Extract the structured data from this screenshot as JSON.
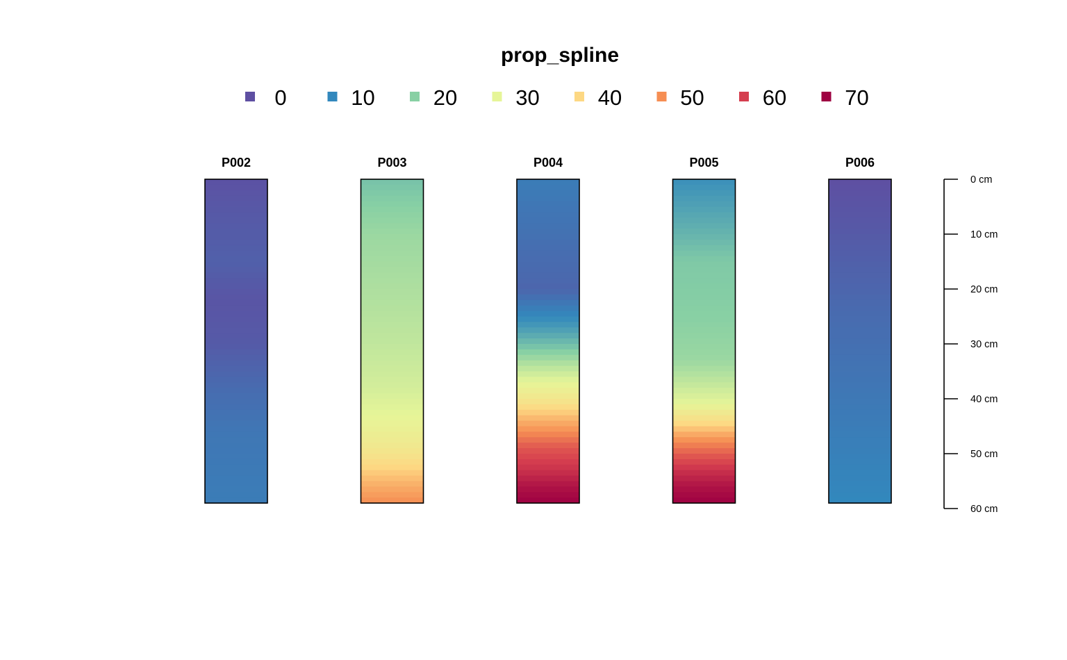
{
  "chart_data": {
    "type": "heatmap",
    "title": "prop_spline",
    "legend": {
      "position": "top",
      "entries": [
        {
          "label": "0",
          "value": 0,
          "color": "#5E4FA2"
        },
        {
          "label": "10",
          "value": 10,
          "color": "#3288BD"
        },
        {
          "label": "20",
          "value": 20,
          "color": "#88D0A4"
        },
        {
          "label": "30",
          "value": 30,
          "color": "#E6F598"
        },
        {
          "label": "40",
          "value": 40,
          "color": "#FDD883"
        },
        {
          "label": "50",
          "value": 50,
          "color": "#F68E53"
        },
        {
          "label": "60",
          "value": 60,
          "color": "#D53E4F"
        },
        {
          "label": "70",
          "value": 70,
          "color": "#9E0142"
        }
      ]
    },
    "depth_axis": {
      "unit": "cm",
      "range": [
        0,
        60
      ],
      "ticks": [
        0,
        10,
        20,
        30,
        40,
        50,
        60
      ],
      "tick_labels": [
        "0 cm",
        "10 cm",
        "20 cm",
        "30 cm",
        "40 cm",
        "50 cm",
        "60 cm"
      ]
    },
    "profiles": [
      {
        "id": "P002",
        "top": 0,
        "bottom": 59,
        "profile_points": [
          [
            0,
            0.5
          ],
          [
            8,
            2
          ],
          [
            15,
            3
          ],
          [
            22,
            1
          ],
          [
            30,
            2
          ],
          [
            38,
            5
          ],
          [
            46,
            7
          ],
          [
            59,
            8
          ]
        ]
      },
      {
        "id": "P003",
        "top": 0,
        "bottom": 59,
        "profile_points": [
          [
            0,
            18
          ],
          [
            5,
            20
          ],
          [
            10,
            22
          ],
          [
            20,
            24
          ],
          [
            30,
            26
          ],
          [
            38,
            28
          ],
          [
            43,
            30
          ],
          [
            47,
            33
          ],
          [
            50,
            36
          ],
          [
            53,
            41
          ],
          [
            56,
            46
          ],
          [
            59,
            50
          ]
        ]
      },
      {
        "id": "P004",
        "top": 0,
        "bottom": 59,
        "profile_points": [
          [
            0,
            8
          ],
          [
            10,
            6
          ],
          [
            20,
            4
          ],
          [
            25,
            10
          ],
          [
            28,
            14
          ],
          [
            31,
            19
          ],
          [
            34,
            25
          ],
          [
            37,
            30
          ],
          [
            40,
            35
          ],
          [
            43,
            43
          ],
          [
            46,
            50
          ],
          [
            49,
            57
          ],
          [
            53,
            62
          ],
          [
            56,
            67
          ],
          [
            59,
            70
          ]
        ]
      },
      {
        "id": "P005",
        "top": 0,
        "bottom": 59,
        "profile_points": [
          [
            0,
            11
          ],
          [
            8,
            15
          ],
          [
            15,
            19
          ],
          [
            25,
            20
          ],
          [
            33,
            22
          ],
          [
            37,
            26
          ],
          [
            41,
            30
          ],
          [
            44,
            38
          ],
          [
            47,
            48
          ],
          [
            50,
            56
          ],
          [
            53,
            62
          ],
          [
            56,
            67
          ],
          [
            59,
            70
          ]
        ]
      },
      {
        "id": "P006",
        "top": 0,
        "bottom": 59,
        "profile_points": [
          [
            0,
            0
          ],
          [
            8,
            1.5
          ],
          [
            15,
            3
          ],
          [
            25,
            5
          ],
          [
            35,
            6.5
          ],
          [
            45,
            8
          ],
          [
            52,
            9
          ],
          [
            59,
            10
          ]
        ]
      }
    ]
  }
}
